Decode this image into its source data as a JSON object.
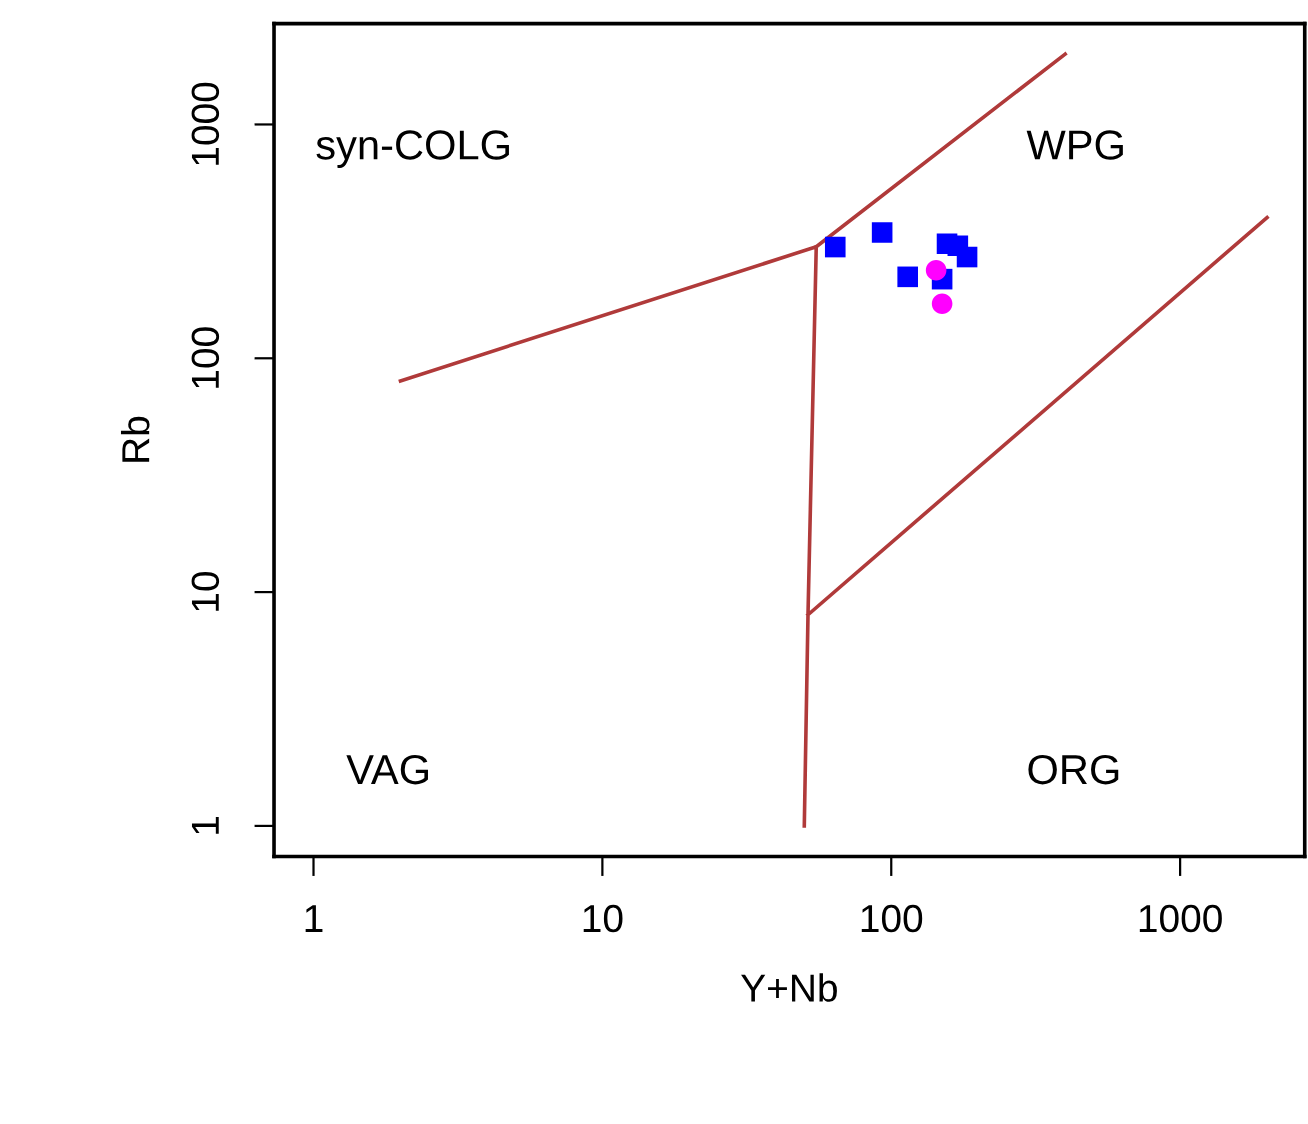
{
  "chart_data": {
    "type": "scatter",
    "xlabel": "Y+Nb",
    "ylabel": "Rb",
    "log": "xy",
    "xlim": [
      0.73,
      2700
    ],
    "ylim": [
      0.74,
      2700
    ],
    "xticks": [
      1,
      10,
      100,
      1000
    ],
    "yticks": [
      1,
      10,
      100,
      1000
    ],
    "grid": false,
    "legend": false,
    "series": [
      {
        "type": "line",
        "color": "#b03a3a",
        "marker": "none",
        "x": [
          2,
          55,
          400,
          null,
          55,
          51.5,
          50,
          null,
          51.5,
          2000
        ],
        "values": [
          80,
          300,
          2000,
          null,
          300,
          8,
          1,
          null,
          8,
          400
        ]
      },
      {
        "color": "#0000ff",
        "marker": "square",
        "x": [
          64,
          93,
          114,
          156,
          170,
          183,
          150
        ],
        "values": [
          299,
          345,
          223,
          309,
          303,
          271,
          218
        ]
      },
      {
        "color": "#ff00ff",
        "marker": "circle",
        "x": [
          143,
          150
        ],
        "values": [
          238,
          171
        ]
      }
    ],
    "annotations": [
      "syn-COLG",
      "WPG",
      "VAG",
      "ORG"
    ]
  }
}
